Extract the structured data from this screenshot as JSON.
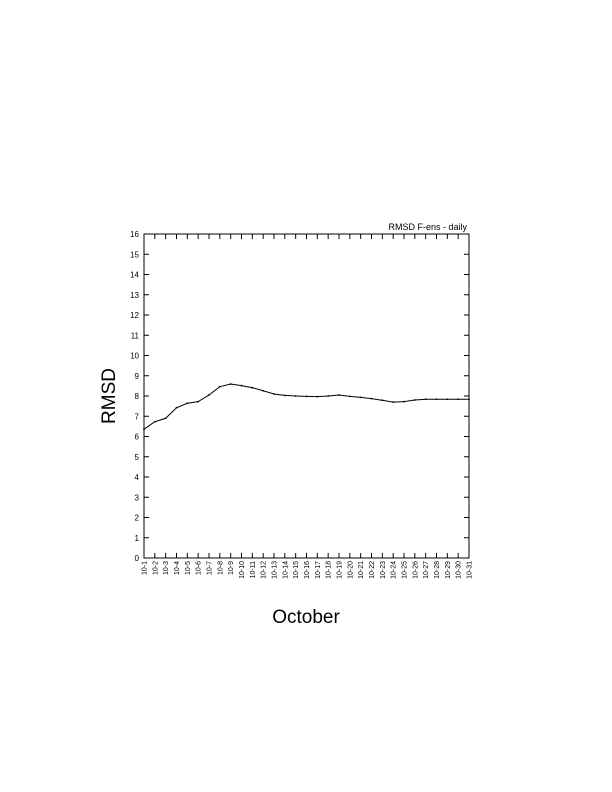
{
  "chart_data": {
    "type": "line",
    "title": "RMSD F-ens - daily",
    "xlabel": "October",
    "ylabel": "RMSD",
    "ylim": [
      0,
      16
    ],
    "yticks": [
      0,
      1,
      2,
      3,
      4,
      5,
      6,
      7,
      8,
      9,
      10,
      11,
      12,
      13,
      14,
      15,
      16
    ],
    "grid": false,
    "categories": [
      "10-1",
      "10-2",
      "10-3",
      "10-4",
      "10-5",
      "10-6",
      "10-7",
      "10-8",
      "10-9",
      "10-10",
      "10-11",
      "10-12",
      "10-13",
      "10-14",
      "10-15",
      "10-16",
      "10-17",
      "10-18",
      "10-19",
      "10-20",
      "10-21",
      "10-22",
      "10-23",
      "10-24",
      "10-25",
      "10-26",
      "10-27",
      "10-28",
      "10-29",
      "10-30",
      "10-31"
    ],
    "values": [
      6.36,
      6.73,
      6.9,
      7.42,
      7.64,
      7.72,
      8.05,
      8.46,
      8.59,
      8.51,
      8.41,
      8.26,
      8.1,
      8.03,
      8.0,
      7.98,
      7.97,
      8.0,
      8.05,
      7.98,
      7.93,
      7.87,
      7.79,
      7.7,
      7.72,
      7.8,
      7.84,
      7.84,
      7.84,
      7.84,
      7.84
    ]
  }
}
